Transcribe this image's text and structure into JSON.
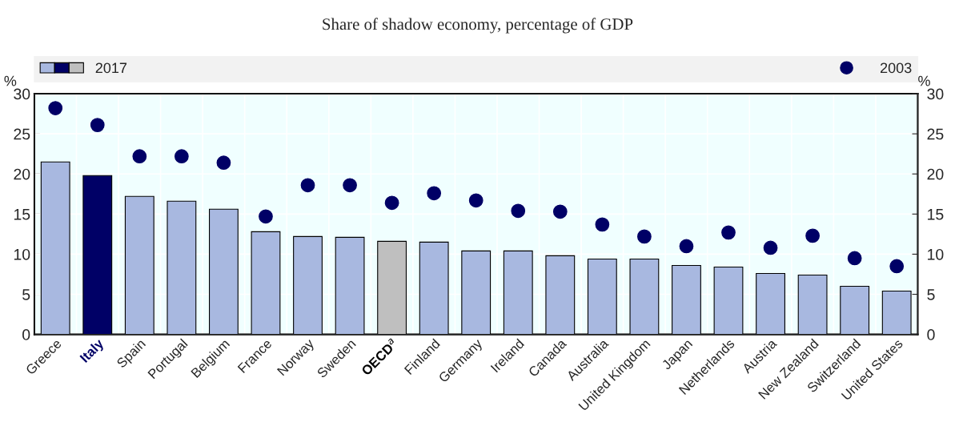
{
  "chart_data": {
    "type": "bar",
    "title": "Share of shadow economy, percentage of GDP",
    "categories": [
      "Greece",
      "Italy",
      "Spain",
      "Portugal",
      "Belgium",
      "France",
      "Norway",
      "Sweden",
      "OECD$^{a}$",
      "Finland",
      "Germany",
      "Ireland",
      "Canada",
      "Australia",
      "United Kingdom",
      "Japan",
      "Netherlands",
      "Austria",
      "New Zealand",
      "Switzerland",
      "United States"
    ],
    "series": [
      {
        "name": "2017",
        "color": "#a8b8e0",
        "colors": [
          "#a8b8e0",
          "#000066",
          "#a8b8e0",
          "#a8b8e0",
          "#a8b8e0",
          "#a8b8e0",
          "#a8b8e0",
          "#a8b8e0",
          "#bfbfbf",
          "#a8b8e0",
          "#a8b8e0",
          "#a8b8e0",
          "#a8b8e0",
          "#a8b8e0",
          "#a8b8e0",
          "#a8b8e0",
          "#a8b8e0",
          "#a8b8e0",
          "#a8b8e0",
          "#a8b8e0",
          "#a8b8e0"
        ],
        "values": [
          21.5,
          19.8,
          17.2,
          16.6,
          15.6,
          12.8,
          12.2,
          12.1,
          11.6,
          11.5,
          10.4,
          10.4,
          9.8,
          9.4,
          9.4,
          8.6,
          8.4,
          7.6,
          7.4,
          6.0,
          5.4
        ]
      },
      {
        "name": "2003",
        "type": "scatter",
        "color": "#000066",
        "marker": "circle",
        "values": [
          28.2,
          26.1,
          22.2,
          22.2,
          21.4,
          14.7,
          18.6,
          18.6,
          16.4,
          17.6,
          16.7,
          15.4,
          15.3,
          13.7,
          12.2,
          11.0,
          12.7,
          10.8,
          12.3,
          9.5,
          8.5
        ]
      }
    ],
    "ylabel": "%",
    "y2label": "%",
    "ylim": [
      0,
      30
    ],
    "yticks": [
      0,
      5,
      10,
      15,
      20,
      25,
      30
    ],
    "y2lim": [
      0,
      30
    ],
    "y2ticks": [
      0,
      5,
      10,
      15,
      20,
      25,
      30
    ],
    "grid": true,
    "legend": "top"
  }
}
